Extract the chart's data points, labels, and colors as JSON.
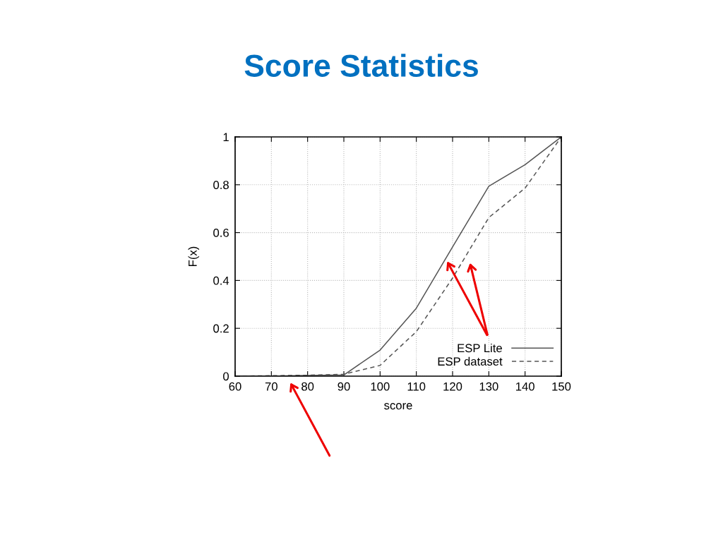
{
  "chart_data": {
    "type": "line",
    "title": "Score Statistics",
    "xlabel": "score",
    "ylabel": "F(x)",
    "x": [
      60,
      70,
      80,
      90,
      100,
      110,
      120,
      130,
      140,
      150
    ],
    "series": [
      {
        "name": "ESP Lite",
        "color": "#555555",
        "line_style": "solid",
        "values": [
          0,
          0,
          0.003,
          0.005,
          0.109,
          0.284,
          0.54,
          0.794,
          0.884,
          1
        ]
      },
      {
        "name": "ESP dataset",
        "color": "#555555",
        "line_style": "dashed",
        "values": [
          0,
          0.002,
          0.004,
          0.008,
          0.045,
          0.186,
          0.41,
          0.663,
          0.786,
          1
        ]
      }
    ],
    "xlim": [
      60,
      150
    ],
    "xticks": [
      60,
      70,
      80,
      90,
      100,
      110,
      120,
      130,
      140,
      150
    ],
    "ylim": [
      0,
      1
    ],
    "yticks": [
      0,
      0.2,
      0.4,
      0.6,
      0.8,
      1
    ],
    "grid": true,
    "legend": "bottom right",
    "marker": "none"
  }
}
